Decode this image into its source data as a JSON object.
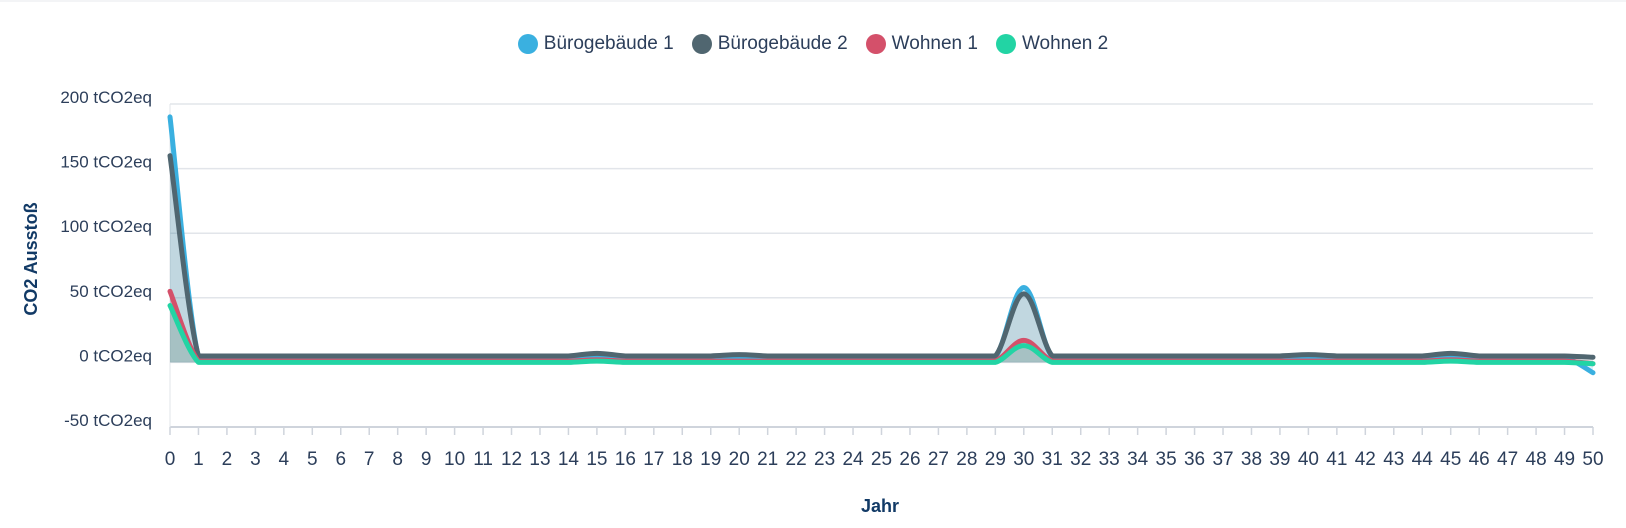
{
  "chart_data": {
    "type": "line",
    "xlabel": "Jahr",
    "ylabel": "CO2 Ausstoß",
    "ylim": [
      -50,
      200
    ],
    "xlim": [
      0,
      50
    ],
    "y_ticks": [
      {
        "value": 200,
        "label": "200 tCO2eq"
      },
      {
        "value": 150,
        "label": "150 tCO2eq"
      },
      {
        "value": 100,
        "label": "100 tCO2eq"
      },
      {
        "value": 50,
        "label": "50 tCO2eq"
      },
      {
        "value": 0,
        "label": "0 tCO2eq"
      },
      {
        "value": -50,
        "label": "-50 tCO2eq"
      }
    ],
    "x": [
      0,
      1,
      2,
      3,
      4,
      5,
      6,
      7,
      8,
      9,
      10,
      11,
      12,
      13,
      14,
      15,
      16,
      17,
      18,
      19,
      20,
      21,
      22,
      23,
      24,
      25,
      26,
      27,
      28,
      29,
      30,
      31,
      32,
      33,
      34,
      35,
      36,
      37,
      38,
      39,
      40,
      41,
      42,
      43,
      44,
      45,
      46,
      47,
      48,
      49,
      50
    ],
    "legend_position": "top",
    "grid": true,
    "series": [
      {
        "name": "Bürogebäude 1",
        "color": "#3ab0e0",
        "values": [
          190,
          4,
          4,
          4,
          4,
          4,
          4,
          4,
          4,
          4,
          4,
          4,
          4,
          4,
          4,
          5,
          4,
          4,
          4,
          4,
          4,
          4,
          4,
          4,
          4,
          4,
          4,
          4,
          4,
          4,
          58,
          4,
          4,
          4,
          4,
          4,
          4,
          4,
          4,
          4,
          4,
          4,
          4,
          4,
          4,
          5,
          4,
          4,
          4,
          4,
          -8
        ]
      },
      {
        "name": "Bürogebäude 2",
        "color": "#506670",
        "values": [
          160,
          5,
          5,
          5,
          5,
          5,
          5,
          5,
          5,
          5,
          5,
          5,
          5,
          5,
          5,
          7,
          5,
          5,
          5,
          5,
          6,
          5,
          5,
          5,
          5,
          5,
          5,
          5,
          5,
          5,
          53,
          5,
          5,
          5,
          5,
          5,
          5,
          5,
          5,
          5,
          6,
          5,
          5,
          5,
          5,
          7,
          5,
          5,
          5,
          5,
          4
        ]
      },
      {
        "name": "Wohnen 1",
        "color": "#d4506a",
        "values": [
          55,
          1,
          1,
          1,
          1,
          1,
          1,
          1,
          1,
          1,
          1,
          1,
          1,
          1,
          1,
          2,
          1,
          1,
          1,
          1,
          1,
          1,
          1,
          1,
          1,
          1,
          1,
          1,
          1,
          1,
          17,
          1,
          1,
          1,
          1,
          1,
          1,
          1,
          1,
          1,
          1,
          1,
          1,
          1,
          1,
          2,
          1,
          1,
          1,
          1,
          -1
        ]
      },
      {
        "name": "Wohnen 2",
        "color": "#22d4a4",
        "values": [
          44,
          0,
          0,
          0,
          0,
          0,
          0,
          0,
          0,
          0,
          0,
          0,
          0,
          0,
          0,
          1,
          0,
          0,
          0,
          0,
          0,
          0,
          0,
          0,
          0,
          0,
          0,
          0,
          0,
          0,
          13,
          0,
          0,
          0,
          0,
          0,
          0,
          0,
          0,
          0,
          0,
          0,
          0,
          0,
          0,
          1,
          0,
          0,
          0,
          0,
          -1
        ]
      }
    ]
  }
}
